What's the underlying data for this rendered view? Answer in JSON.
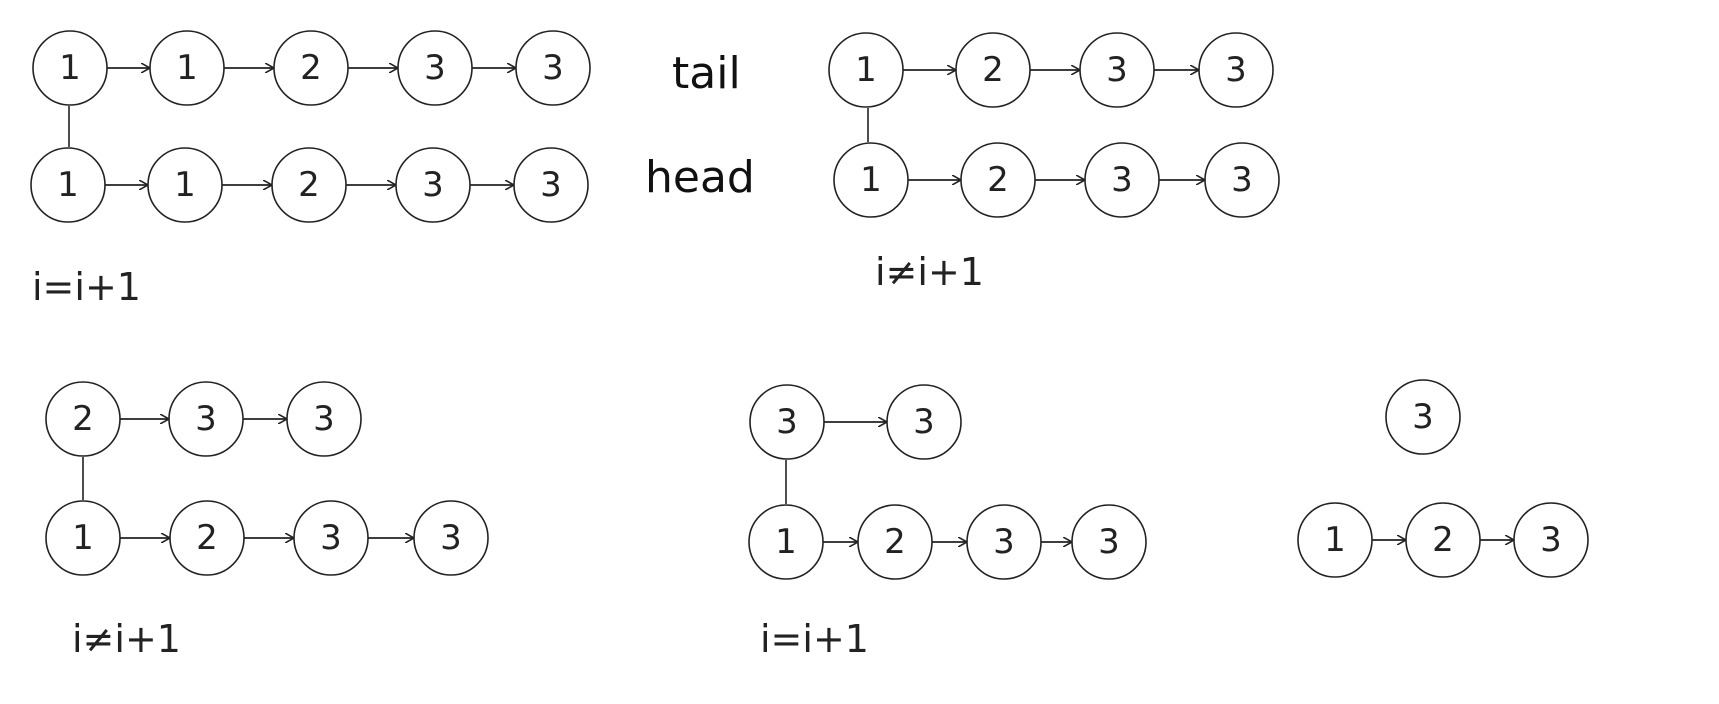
{
  "labels": {
    "tail": "tail",
    "head": "head"
  },
  "conditions": [
    "i=i+1",
    "i≠i+1",
    "i≠i+1",
    "i=i+1"
  ],
  "panel1": {
    "top": [
      "1",
      "1",
      "2",
      "3",
      "3"
    ],
    "bottom": [
      "1",
      "1",
      "2",
      "3",
      "3"
    ],
    "connector": "i"
  },
  "panel2": {
    "top": [
      "1",
      "2",
      "3",
      "3"
    ],
    "bottom": [
      "1",
      "2",
      "3",
      "3"
    ],
    "connector": "i"
  },
  "panel3": {
    "top": [
      "2",
      "3",
      "3"
    ],
    "bottom": [
      "1",
      "2",
      "3",
      "3"
    ],
    "connector": "i"
  },
  "panel4": {
    "top": [
      "3",
      "3"
    ],
    "bottom": [
      "1",
      "2",
      "3",
      "3"
    ],
    "connector": "i"
  },
  "panel5": {
    "top": [
      "3"
    ],
    "bottom": [
      "1",
      "2",
      "3"
    ]
  }
}
